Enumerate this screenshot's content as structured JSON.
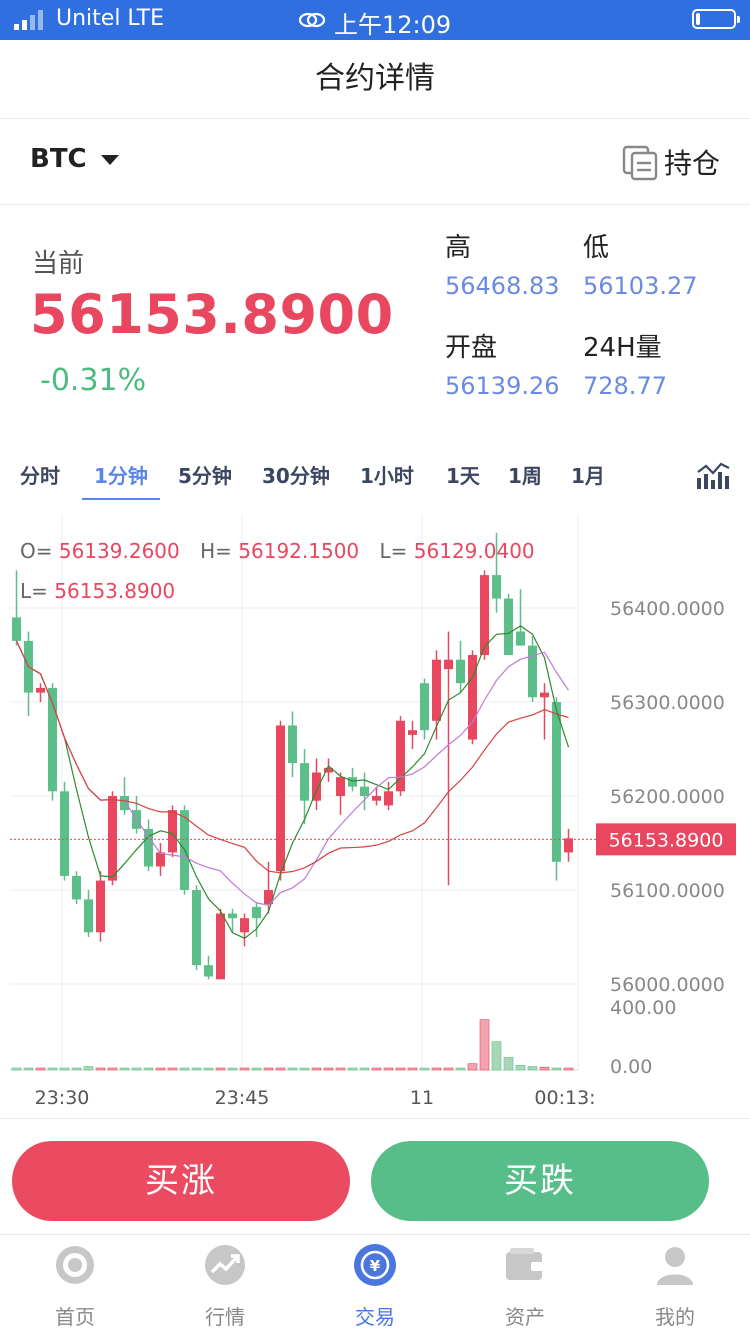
{
  "status_bar": {
    "carrier": "Unitel   LTE",
    "time": "上午12:09"
  },
  "header": {
    "title": "合约详情"
  },
  "symbol_bar": {
    "symbol": "BTC",
    "positions_label": "持仓"
  },
  "price": {
    "current_label": "当前",
    "current_value": "56153.8900",
    "change": "-0.31%",
    "high_label": "高",
    "high_value": "56468.83",
    "low_label": "低",
    "low_value": "56103.27",
    "open_label": "开盘",
    "open_value": "56139.26",
    "volume_label": "24H量",
    "volume_value": "728.77"
  },
  "tabs": [
    "分时",
    "1分钟",
    "5分钟",
    "30分钟",
    "1小时",
    "1天",
    "1周",
    "1月"
  ],
  "active_tab": "1分钟",
  "ohlc": {
    "o_label": "O=",
    "o_value": "56139.2600",
    "h_label": "H=",
    "h_value": "56192.1500",
    "l_label": "L=",
    "l_value": "56129.0400",
    "c_label": "L=",
    "c_value": "56153.8900"
  },
  "chart_data": {
    "type": "candlestick",
    "y_ticks": [
      "56400.0000",
      "56300.0000",
      "56200.0000",
      "56100.0000",
      "56000.0000"
    ],
    "ylim": [
      56000,
      56400
    ],
    "current_price_label": "56153.8900",
    "current_price": 56153.89,
    "volume_ticks": [
      "400.00",
      "0.00"
    ],
    "x_ticks": [
      "23:30",
      "23:45",
      "11",
      "00:13:"
    ],
    "candles": [
      [
        56390,
        56440,
        56360,
        56365
      ],
      [
        56365,
        56375,
        56285,
        56310
      ],
      [
        56310,
        56320,
        56300,
        56315
      ],
      [
        56315,
        56320,
        56195,
        56205
      ],
      [
        56205,
        56215,
        56110,
        56115
      ],
      [
        56115,
        56120,
        56085,
        56090
      ],
      [
        56090,
        56100,
        56050,
        56055
      ],
      [
        56055,
        56120,
        56045,
        56110
      ],
      [
        56110,
        56205,
        56105,
        56200
      ],
      [
        56200,
        56220,
        56180,
        56185
      ],
      [
        56185,
        56200,
        56160,
        56165
      ],
      [
        56165,
        56175,
        56120,
        56125
      ],
      [
        56125,
        56150,
        56115,
        56140
      ],
      [
        56140,
        56190,
        56135,
        56185
      ],
      [
        56185,
        56190,
        56095,
        56100
      ],
      [
        56100,
        56105,
        56015,
        56020
      ],
      [
        56020,
        56030,
        56005,
        56008
      ],
      [
        56005,
        56080,
        56005,
        56075
      ],
      [
        56075,
        56080,
        56055,
        56070
      ],
      [
        56055,
        56075,
        56040,
        56070
      ],
      [
        56082,
        56087,
        56050,
        56070
      ],
      [
        56085,
        56130,
        56075,
        56100
      ],
      [
        56120,
        56280,
        56110,
        56275
      ],
      [
        56275,
        56290,
        56220,
        56235
      ],
      [
        56235,
        56250,
        56170,
        56195
      ],
      [
        56195,
        56240,
        56185,
        56225
      ],
      [
        56225,
        56240,
        56215,
        56230
      ],
      [
        56200,
        56225,
        56180,
        56220
      ],
      [
        56220,
        56230,
        56205,
        56210
      ],
      [
        56210,
        56225,
        56185,
        56200
      ],
      [
        56195,
        56210,
        56190,
        56200
      ],
      [
        56190,
        56215,
        56185,
        56205
      ],
      [
        56205,
        56285,
        56200,
        56280
      ],
      [
        56265,
        56280,
        56250,
        56270
      ],
      [
        56320,
        56325,
        56260,
        56270
      ],
      [
        56280,
        56355,
        56260,
        56345
      ],
      [
        56335,
        56375,
        56105,
        56345
      ],
      [
        56345,
        56365,
        56310,
        56320
      ],
      [
        56260,
        56355,
        56255,
        56350
      ],
      [
        56350,
        56440,
        56345,
        56435
      ],
      [
        56435,
        56480,
        56395,
        56410
      ],
      [
        56410,
        56415,
        56350,
        56350
      ],
      [
        56375,
        56420,
        56360,
        56360
      ],
      [
        56360,
        56370,
        56300,
        56305
      ],
      [
        56305,
        56320,
        56260,
        56310
      ],
      [
        56300,
        56305,
        56110,
        56130
      ],
      [
        56140,
        56165,
        56130,
        56155
      ]
    ],
    "volumes": [
      10,
      8,
      6,
      8,
      12,
      10,
      22,
      8,
      5,
      6,
      12,
      5,
      4,
      6,
      8,
      10,
      9,
      8,
      6,
      8,
      7,
      6,
      6,
      8,
      6,
      6,
      6,
      6,
      5,
      6,
      4,
      6,
      6,
      5,
      4,
      5,
      6,
      10,
      40,
      320,
      180,
      80,
      30,
      22,
      18,
      12,
      8
    ]
  }
}
